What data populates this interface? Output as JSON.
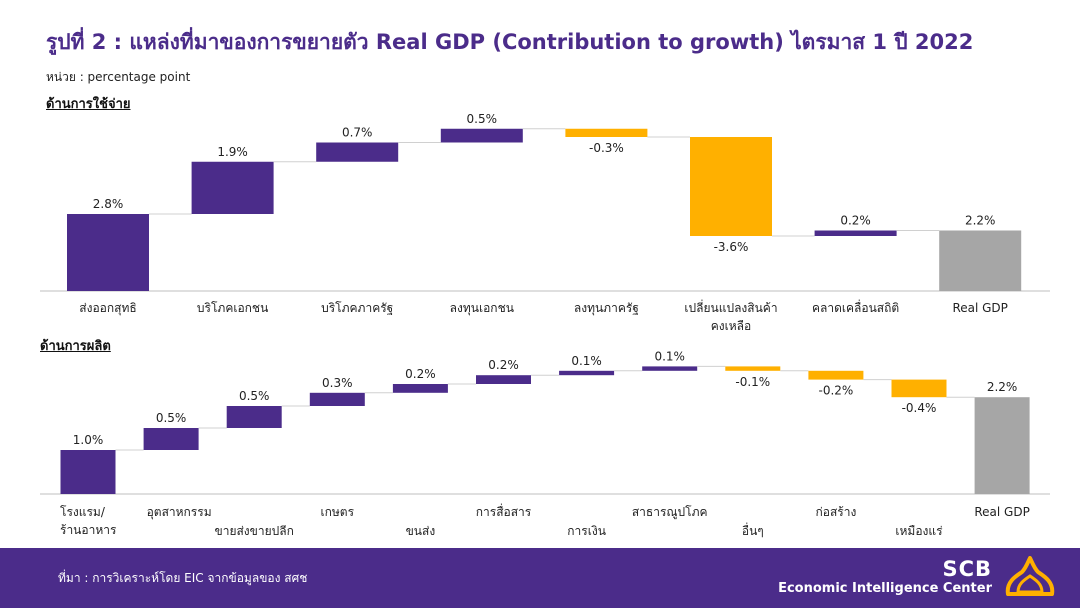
{
  "header": {
    "title": "รูปที่ 2 : แหล่งที่มาของการขยายตัว Real GDP (Contribution to growth) ไตรมาส 1 ปี 2022",
    "unit": "หน่วย : percentage point"
  },
  "colors": {
    "positive": "#4b2c8a",
    "negative": "#ffb000",
    "total": "#a6a6a6"
  },
  "chart_data": [
    {
      "type": "bar",
      "title": "ด้านการใช้จ่าย",
      "categories": [
        "ส่งออกสุทธิ",
        "บริโภคเอกชน",
        "บริโภคภาครัฐ",
        "ลงทุนเอกชน",
        "ลงทุนภาครัฐ",
        "เปลี่ยนแปลงสินค้าคงเหลือ",
        "คลาดเคลื่อนสถิติ",
        "Real GDP"
      ],
      "values": [
        2.8,
        1.9,
        0.7,
        0.5,
        -0.3,
        -3.6,
        0.2,
        2.2
      ],
      "value_labels": [
        "2.8%",
        "1.9%",
        "0.7%",
        "0.5%",
        "-0.3%",
        "-3.6%",
        "0.2%",
        "2.2%"
      ],
      "total_index": 7
    },
    {
      "type": "bar",
      "title": "ด้านการผลิต",
      "categories": [
        "โรงแรม/ร้านอาหาร",
        "อุตสาหกรรม",
        "ขายส่งขายปลีก",
        "เกษตร",
        "ขนส่ง",
        "การสื่อสาร",
        "การเงิน",
        "สาธารณูปโภค",
        "อื่นๆ",
        "ก่อสร้าง",
        "เหมืองแร่",
        "Real GDP"
      ],
      "values": [
        1.0,
        0.5,
        0.5,
        0.3,
        0.2,
        0.2,
        0.1,
        0.1,
        -0.1,
        -0.2,
        -0.4,
        2.2
      ],
      "value_labels": [
        "1.0%",
        "0.5%",
        "0.5%",
        "0.3%",
        "0.2%",
        "0.2%",
        "0.1%",
        "0.1%",
        "-0.1%",
        "-0.2%",
        "-0.4%",
        "2.2%"
      ],
      "total_index": 11
    }
  ],
  "footer": {
    "source": "ที่มา : การวิเคราะห์โดย EIC จากข้อมูลของ สศช",
    "brand_main": "SCB",
    "brand_sub": "Economic Intelligence Center"
  }
}
